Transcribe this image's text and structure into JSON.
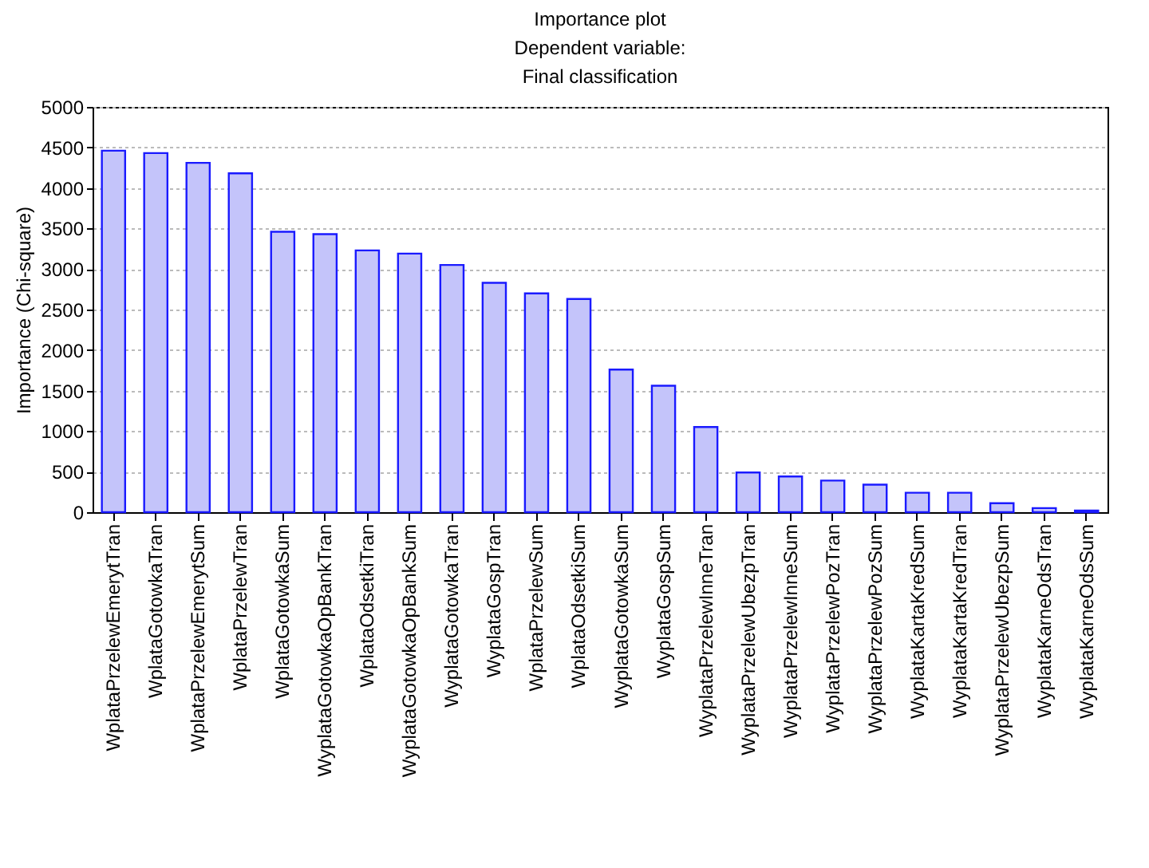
{
  "chart_data": {
    "type": "bar",
    "title": [
      "Importance plot",
      "Dependent variable:",
      "Final classification"
    ],
    "ylabel": "Importance (Chi-square)",
    "categories": [
      "WplataPrzelewEmerytTran",
      "WplataGotowkaTran",
      "WplataPrzelewEmerytSum",
      "WplataPrzelewTran",
      "WplataGotowkaSum",
      "WyplataGotowkaOpBankTran",
      "WplataOdsetkiTran",
      "WyplataGotowkaOpBankSum",
      "WyplataGotowkaTran",
      "WyplataGospTran",
      "WplataPrzelewSum",
      "WplataOdsetkiSum",
      "WyplataGotowkaSum",
      "WyplataGospSum",
      "WyplataPrzelewInneTran",
      "WyplataPrzelewUbezpTran",
      "WyplataPrzelewInneSum",
      "WyplataPrzelewPozTran",
      "WyplataPrzelewPozSum",
      "WyplataKartaKredSum",
      "WyplataKartaKredTran",
      "WyplataPrzelewUbezpSum",
      "WyplataKarneOdsTran",
      "WyplataKarneOdsSum"
    ],
    "values": [
      4460,
      4430,
      4310,
      4180,
      3460,
      3430,
      3230,
      3190,
      3050,
      2830,
      2700,
      2630,
      1760,
      1560,
      1050,
      490,
      440,
      390,
      340,
      240,
      240,
      110,
      50,
      20
    ],
    "color": "#c4c4fa",
    "ylim": [
      0,
      5000
    ],
    "yticks": [
      0,
      500,
      1000,
      1500,
      2000,
      2500,
      3000,
      3500,
      4000,
      4500,
      5000
    ],
    "grid": "y"
  }
}
